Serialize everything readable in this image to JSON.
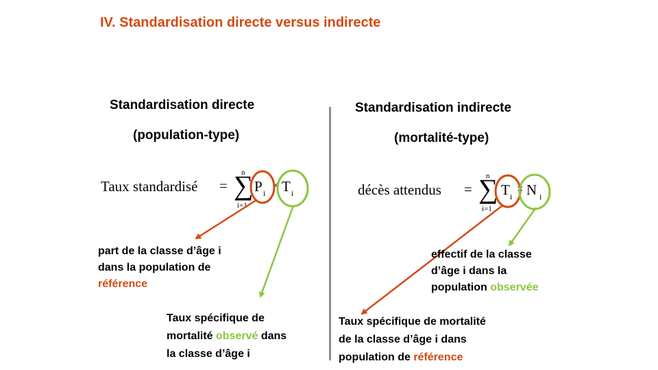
{
  "title": "IV. Standardisation directe versus indirecte",
  "left": {
    "heading1": "Standardisation directe",
    "heading2": "(population-type)",
    "formula": {
      "label": "Taux standardisé",
      "eq": "=",
      "upper": "n",
      "lower": "i=1",
      "var1": "P",
      "var1_sub": "i",
      "times": "×",
      "var2": "T",
      "var2_sub": "i"
    },
    "note_red": {
      "line1": "part de la classe d’âge i",
      "line2": "dans la population de",
      "line3_colored": "référence"
    },
    "note_green": {
      "line1": "Taux spécifique de",
      "line2_pre": "mortalité",
      "line2_colored": "observé",
      "line2_post": "dans",
      "line3": "la classe d’âge i"
    }
  },
  "right": {
    "heading1": "Standardisation indirecte",
    "heading2": "(mortalité-type)",
    "formula": {
      "label": "décès attendus",
      "eq": "=",
      "upper": "n",
      "lower": "i=1",
      "var1": "T",
      "var1_sub": "i",
      "times": "×",
      "var2": "N",
      "var2_sub": "i"
    },
    "note_green": {
      "line1": "effectif de la classe",
      "line2": "d’âge i dans la",
      "line3_pre": "population",
      "line3_colored": "observée"
    },
    "note_red": {
      "line1": "Taux spécifique de mortalité",
      "line2": "de la classe d’âge i dans",
      "line3_pre": "population de",
      "line3_colored": "référence"
    }
  },
  "colors": {
    "accent_red": "#d24a12",
    "accent_green": "#8cc63f",
    "divider": "#8c8c8c"
  }
}
